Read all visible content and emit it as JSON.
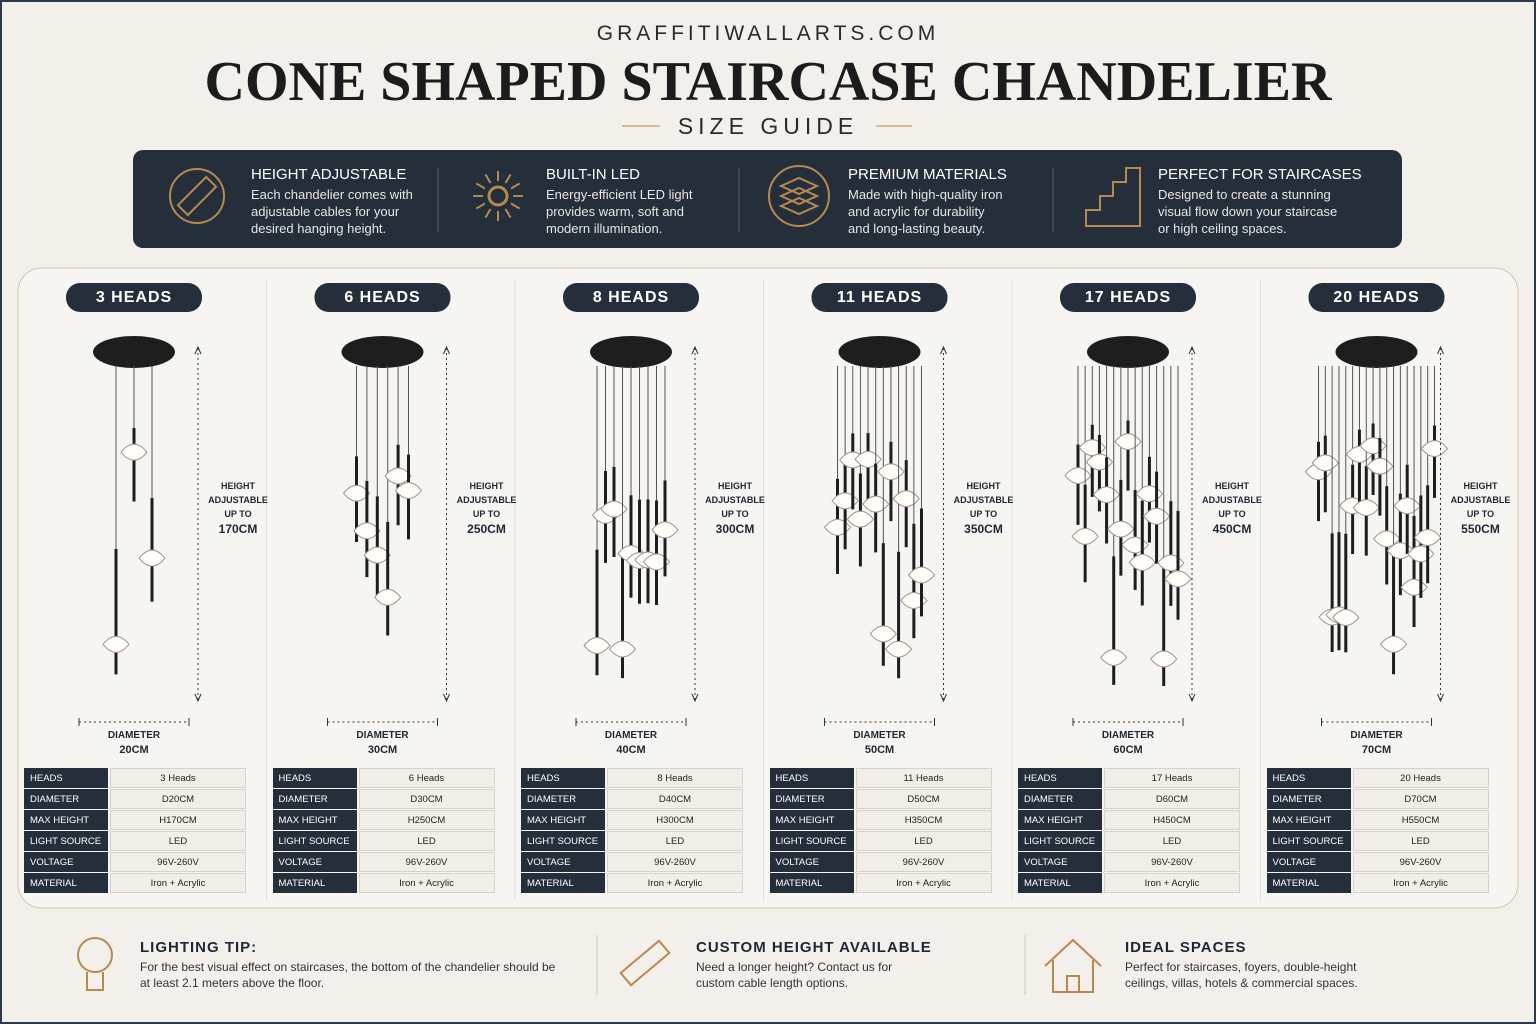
{
  "header": {
    "site": "GRAFFITIWALLARTS.COM",
    "title": "CONE SHAPED STAIRCASE CHANDELIER",
    "subtitle": "SIZE GUIDE"
  },
  "features": [
    {
      "title": "HEIGHT ADJUSTABLE",
      "text": [
        "Each chandelier comes with",
        "adjustable cables for your",
        "desired hanging height."
      ]
    },
    {
      "title": "BUILT-IN LED",
      "text": [
        "Energy-efficient LED light",
        "provides warm, soft and",
        "modern illumination."
      ]
    },
    {
      "title": "PREMIUM MATERIALS",
      "text": [
        "Made with high-quality iron",
        "and acrylic for durability",
        "and long-lasting beauty."
      ]
    },
    {
      "title": "PERFECT FOR STAIRCASES",
      "text": [
        "Designed to create a stunning",
        "visual flow down your staircase",
        "or high ceiling spaces."
      ]
    }
  ],
  "products": [
    {
      "label": "3 HEADS",
      "height_note": [
        "HEIGHT",
        "ADJUSTABLE",
        "UP TO"
      ],
      "height": "170CM",
      "diameter_label": "DIAMETER",
      "diameter": "20CM",
      "specs": [
        [
          "HEADS",
          "3 Heads"
        ],
        [
          "DIAMETER",
          "D20CM"
        ],
        [
          "MAX HEIGHT",
          "H170CM"
        ],
        [
          "LIGHT SOURCE",
          "LED"
        ],
        [
          "VOLTAGE",
          "96V-260V"
        ],
        [
          "MATERIAL",
          "Iron + Acrylic"
        ]
      ]
    },
    {
      "label": "6 HEADS",
      "height_note": [
        "HEIGHT",
        "ADJUSTABLE",
        "UP TO"
      ],
      "height": "250CM",
      "diameter_label": "DIAMETER",
      "diameter": "30CM",
      "specs": [
        [
          "HEADS",
          "6 Heads"
        ],
        [
          "DIAMETER",
          "D30CM"
        ],
        [
          "MAX HEIGHT",
          "H250CM"
        ],
        [
          "LIGHT SOURCE",
          "LED"
        ],
        [
          "VOLTAGE",
          "96V-260V"
        ],
        [
          "MATERIAL",
          "Iron + Acrylic"
        ]
      ]
    },
    {
      "label": "8 HEADS",
      "height_note": [
        "HEIGHT",
        "ADJUSTABLE",
        "UP TO"
      ],
      "height": "300CM",
      "diameter_label": "DIAMETER",
      "diameter": "40CM",
      "specs": [
        [
          "HEADS",
          "8 Heads"
        ],
        [
          "DIAMETER",
          "D40CM"
        ],
        [
          "MAX HEIGHT",
          "H300CM"
        ],
        [
          "LIGHT SOURCE",
          "LED"
        ],
        [
          "VOLTAGE",
          "96V-260V"
        ],
        [
          "MATERIAL",
          "Iron + Acrylic"
        ]
      ]
    },
    {
      "label": "11 HEADS",
      "height_note": [
        "HEIGHT",
        "ADJUSTABLE",
        "UP TO"
      ],
      "height": "350CM",
      "diameter_label": "DIAMETER",
      "diameter": "50CM",
      "specs": [
        [
          "HEADS",
          "11 Heads"
        ],
        [
          "DIAMETER",
          "D50CM"
        ],
        [
          "MAX HEIGHT",
          "H350CM"
        ],
        [
          "LIGHT SOURCE",
          "LED"
        ],
        [
          "VOLTAGE",
          "96V-260V"
        ],
        [
          "MATERIAL",
          "Iron + Acrylic"
        ]
      ]
    },
    {
      "label": "17 HEADS",
      "height_note": [
        "HEIGHT",
        "ADJUSTABLE",
        "UP TO"
      ],
      "height": "450CM",
      "diameter_label": "DIAMETER",
      "diameter": "60CM",
      "specs": [
        [
          "HEADS",
          "17 Heads"
        ],
        [
          "DIAMETER",
          "D60CM"
        ],
        [
          "MAX HEIGHT",
          "H450CM"
        ],
        [
          "LIGHT SOURCE",
          "LED"
        ],
        [
          "VOLTAGE",
          "96V-260V"
        ],
        [
          "MATERIAL",
          "Iron + Acrylic"
        ]
      ]
    },
    {
      "label": "20 HEADS",
      "height_note": [
        "HEIGHT",
        "ADJUSTABLE",
        "UP TO"
      ],
      "height": "550CM",
      "diameter_label": "DIAMETER",
      "diameter": "70CM",
      "specs": [
        [
          "HEADS",
          "20 Heads"
        ],
        [
          "DIAMETER",
          "D70CM"
        ],
        [
          "MAX HEIGHT",
          "H550CM"
        ],
        [
          "LIGHT SOURCE",
          "LED"
        ],
        [
          "VOLTAGE",
          "96V-260V"
        ],
        [
          "MATERIAL",
          "Iron + Acrylic"
        ]
      ]
    }
  ],
  "tips": [
    {
      "title": "LIGHTING TIP:",
      "text": [
        "For the best visual effect on staircases, the bottom of the chandelier should be",
        "at least 2.1 meters above the floor."
      ]
    },
    {
      "title": "CUSTOM HEIGHT AVAILABLE",
      "text": [
        "Need a longer height? Contact us for",
        "custom cable length options."
      ]
    },
    {
      "title": "IDEAL SPACES",
      "text": [
        "Perfect for staircases, foyers, double-height",
        "ceilings, villas, hotels & commercial spaces."
      ]
    }
  ]
}
